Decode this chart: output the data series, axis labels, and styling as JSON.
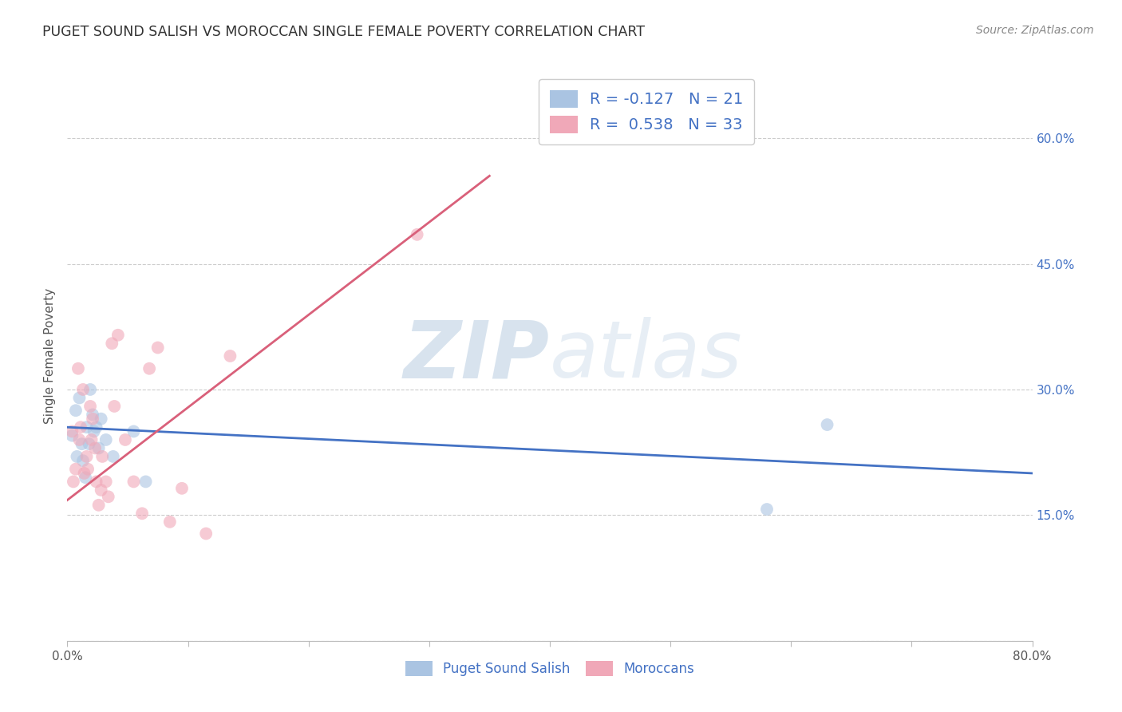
{
  "title": "PUGET SOUND SALISH VS MOROCCAN SINGLE FEMALE POVERTY CORRELATION CHART",
  "source": "Source: ZipAtlas.com",
  "ylabel": "Single Female Poverty",
  "yticks": [
    0.0,
    0.15,
    0.3,
    0.45,
    0.6
  ],
  "ytick_labels": [
    "",
    "15.0%",
    "30.0%",
    "45.0%",
    "60.0%"
  ],
  "xlim": [
    0.0,
    0.8
  ],
  "ylim": [
    0.0,
    0.68
  ],
  "blue_scatter_x": [
    0.004,
    0.007,
    0.008,
    0.01,
    0.012,
    0.013,
    0.015,
    0.016,
    0.018,
    0.019,
    0.021,
    0.022,
    0.024,
    0.026,
    0.028,
    0.032,
    0.038,
    0.055,
    0.065,
    0.58,
    0.63
  ],
  "blue_scatter_y": [
    0.245,
    0.275,
    0.22,
    0.29,
    0.235,
    0.215,
    0.195,
    0.255,
    0.235,
    0.3,
    0.27,
    0.25,
    0.255,
    0.23,
    0.265,
    0.24,
    0.22,
    0.25,
    0.19,
    0.157,
    0.258
  ],
  "pink_scatter_x": [
    0.004,
    0.005,
    0.007,
    0.009,
    0.01,
    0.011,
    0.013,
    0.014,
    0.016,
    0.017,
    0.019,
    0.02,
    0.021,
    0.023,
    0.024,
    0.026,
    0.028,
    0.029,
    0.032,
    0.034,
    0.037,
    0.039,
    0.042,
    0.048,
    0.055,
    0.062,
    0.068,
    0.075,
    0.085,
    0.095,
    0.115,
    0.135,
    0.29
  ],
  "pink_scatter_y": [
    0.25,
    0.19,
    0.205,
    0.325,
    0.24,
    0.255,
    0.3,
    0.2,
    0.22,
    0.205,
    0.28,
    0.24,
    0.265,
    0.23,
    0.19,
    0.162,
    0.18,
    0.22,
    0.19,
    0.172,
    0.355,
    0.28,
    0.365,
    0.24,
    0.19,
    0.152,
    0.325,
    0.35,
    0.142,
    0.182,
    0.128,
    0.34,
    0.485
  ],
  "blue_line_x": [
    0.0,
    0.8
  ],
  "blue_line_y": [
    0.255,
    0.2
  ],
  "pink_line_x": [
    0.0,
    0.35
  ],
  "pink_line_y": [
    0.168,
    0.555
  ],
  "watermark_zip": "ZIP",
  "watermark_atlas": "atlas",
  "blue_color": "#aac4e2",
  "pink_color": "#f0a8b8",
  "blue_line_color": "#4472c4",
  "pink_line_color": "#d9607a",
  "bg_color": "#ffffff",
  "grid_color": "#cccccc",
  "scatter_size": 130,
  "scatter_alpha": 0.6,
  "legend_r1": "R = -0.127",
  "legend_n1": "N = 21",
  "legend_r2": "R =  0.538",
  "legend_n2": "N = 33"
}
